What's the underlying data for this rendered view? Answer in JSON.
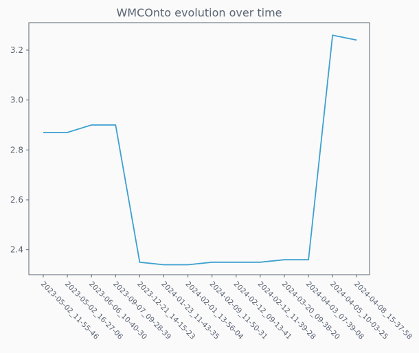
{
  "chart_data": {
    "type": "line",
    "title": "WMCOnto evolution over time",
    "xlabel": "",
    "ylabel": "",
    "ylim": [
      2.3,
      3.31
    ],
    "yticks": [
      2.4,
      2.6,
      2.8,
      3.0,
      3.2
    ],
    "ytick_labels": [
      "2.4",
      "2.6",
      "2.8",
      "3.0",
      "3.2"
    ],
    "categories": [
      "2023-05-02_11-55-46",
      "2023-05-02_16-27-06",
      "2023-06-06_10-40-30",
      "2023-09-07_09-28-39",
      "2023-12-21_14-15-23",
      "2024-01-23_11-43-35",
      "2024-02-01_13-56-04",
      "2024-02-09_11-50-31",
      "2024-02-12_09-13-41",
      "2024-02-12_11-39-28",
      "2024-03-20_09-38-20",
      "2024-04-03_07-39-08",
      "2024-04-05_10-03-25",
      "2024-04-08_15-37-58"
    ],
    "series": [
      {
        "values": [
          2.87,
          2.87,
          2.9,
          2.9,
          2.35,
          2.34,
          2.34,
          2.35,
          2.35,
          2.35,
          2.36,
          2.36,
          3.26,
          3.24
        ],
        "color": "#3ca0d0"
      }
    ],
    "grid": false,
    "legend": "none"
  }
}
